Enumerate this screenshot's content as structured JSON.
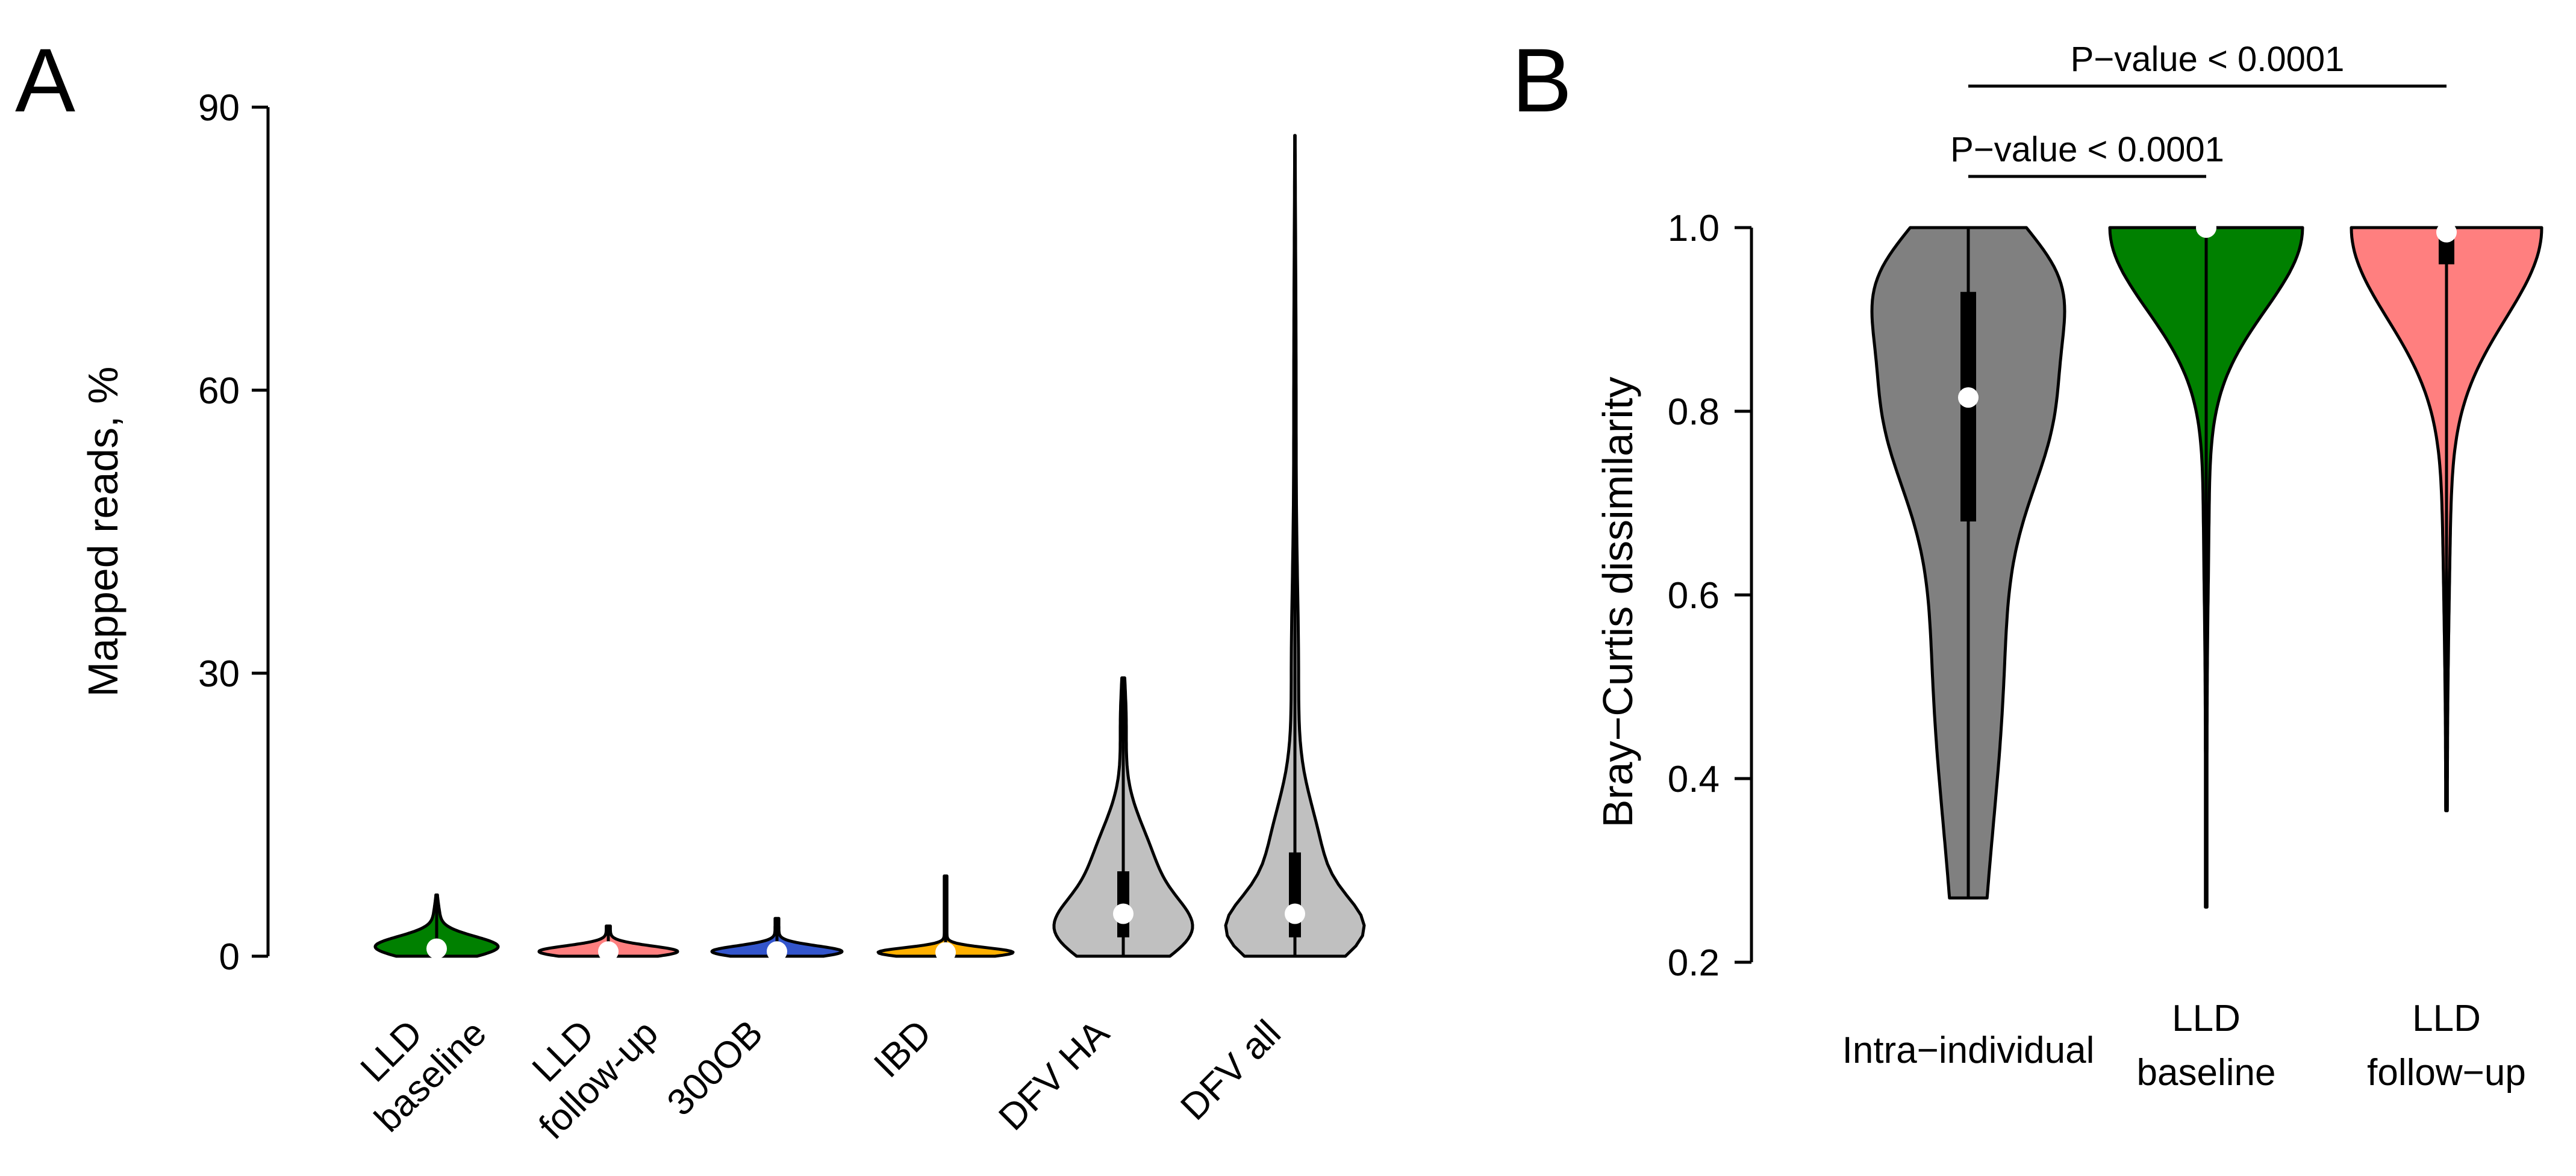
{
  "chart_data": [
    {
      "panel": "A",
      "type": "violin",
      "ylabel": "Mapped reads, %",
      "ylim": [
        0,
        90
      ],
      "yticks": [
        0,
        30,
        60,
        90
      ],
      "categories": [
        {
          "line1": "LLD",
          "line2": "baseline",
          "color": "#008000",
          "min": 0,
          "max": 6.5,
          "median": 0.8,
          "q1": 0.3,
          "q3": 1.5
        },
        {
          "line1": "LLD",
          "line2": "follow-up",
          "color": "#ff7f7f",
          "min": 0,
          "max": 3.2,
          "median": 0.5,
          "q1": 0.3,
          "q3": 0.8
        },
        {
          "line1": "300OB",
          "line2": "",
          "color": "#3355cc",
          "min": 0,
          "max": 4.0,
          "median": 0.5,
          "q1": 0.3,
          "q3": 0.8
        },
        {
          "line1": "IBD",
          "line2": "",
          "color": "#ffb000",
          "min": 0,
          "max": 8.5,
          "median": 0.4,
          "q1": 0.2,
          "q3": 0.7
        },
        {
          "line1": "DFV HA",
          "line2": "",
          "color": "#c0c0c0",
          "min": 0,
          "max": 29.5,
          "median": 4.5,
          "q1": 2.0,
          "q3": 9.0
        },
        {
          "line1": "DFV all",
          "line2": "",
          "color": "#c0c0c0",
          "min": 0,
          "max": 87.0,
          "median": 4.5,
          "q1": 2.0,
          "q3": 11.0
        }
      ]
    },
    {
      "panel": "B",
      "type": "violin",
      "ylabel": "Bray−Curtis dissimilarity",
      "ylim": [
        0.2,
        1.0
      ],
      "yticks": [
        "0.2",
        "0.4",
        "0.6",
        "0.8",
        "1.0"
      ],
      "categories": [
        {
          "line1": "Intra−individual",
          "line2": "",
          "color": "#808080",
          "min": 0.27,
          "max": 1.0,
          "median": 0.815,
          "q1": 0.68,
          "q3": 0.93
        },
        {
          "line1": "LLD",
          "line2": "baseline",
          "color": "#008000",
          "min": 0.26,
          "max": 1.0,
          "median": 1.0,
          "q1": 0.995,
          "q3": 1.0
        },
        {
          "line1": "LLD",
          "line2": "follow−up",
          "color": "#ff7f7f",
          "min": 0.365,
          "max": 1.0,
          "median": 0.995,
          "q1": 0.96,
          "q3": 1.0
        }
      ],
      "comparisons": [
        {
          "from": 0,
          "to": 1,
          "label": "P−value < 0.0001"
        },
        {
          "from": 0,
          "to": 2,
          "label": "P−value < 0.0001"
        }
      ]
    }
  ]
}
